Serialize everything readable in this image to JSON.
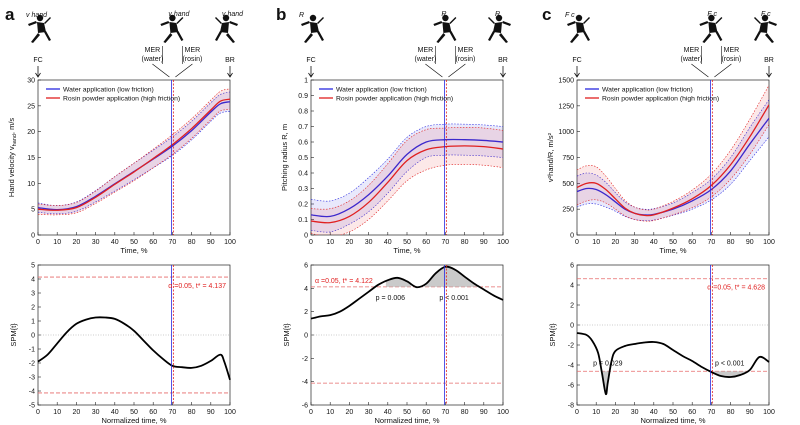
{
  "colors": {
    "water": "#2a2ae0",
    "rosin": "#e02020",
    "thr": "#e66a6a",
    "spm": "#000000",
    "supra": "#bdbdbd",
    "zero": "#9a9a9a",
    "velocity_icon": "#3aa4de"
  },
  "legend": {
    "water": "Water application (low friction)",
    "rosin": "Rosin powder application (high friction)"
  },
  "figure_events": {
    "fc": "FC",
    "mer_water": "MER\n(water)",
    "mer_rosin": "MER\n(rosin)",
    "br": "BR"
  },
  "mer_time": {
    "water": 69.5,
    "rosin": 70.5
  },
  "panels": [
    {
      "letter": "a",
      "icon_label": "v",
      "icon_sub": "hand",
      "top_chart": {
        "type": "line",
        "xlabel": "Time, %",
        "ylabel": "Hand velocity v",
        "ylabel_sub": "hand",
        "ylabel_unit": ", m/s",
        "xlim": [
          0,
          100
        ],
        "ylim": [
          0,
          30
        ],
        "xticks": [
          0,
          10,
          20,
          30,
          40,
          50,
          60,
          70,
          80,
          90,
          100
        ],
        "yticks": [
          0,
          5,
          10,
          15,
          20,
          25,
          30
        ],
        "x": [
          0,
          10,
          20,
          30,
          40,
          50,
          60,
          70,
          80,
          90,
          95,
          100
        ],
        "series": [
          {
            "name": "Water application (low friction)",
            "key": "water",
            "values": [
              5.3,
              4.9,
              5.5,
              7.5,
              9.9,
              12.3,
              14.7,
              17.2,
              20.2,
              23.8,
              25.4,
              25.8
            ],
            "sd": [
              0.9,
              0.8,
              0.9,
              1.1,
              1.4,
              1.6,
              1.7,
              1.8,
              1.8,
              1.8,
              1.8,
              1.9
            ]
          },
          {
            "name": "Rosin powder application (high friction)",
            "key": "rosin",
            "values": [
              5.0,
              4.8,
              5.3,
              7.3,
              9.8,
              12.2,
              14.8,
              17.5,
              20.6,
              24.2,
              25.9,
              26.3
            ],
            "sd": [
              1.0,
              0.9,
              1.0,
              1.2,
              1.5,
              1.7,
              1.8,
              1.9,
              1.9,
              1.9,
              1.9,
              2.0
            ]
          }
        ]
      },
      "spm_chart": {
        "type": "line",
        "xlabel": "Normalized time, %",
        "ylabel": "SPM{t}",
        "xlim": [
          0,
          100
        ],
        "ylim": [
          -5,
          5
        ],
        "xticks": [
          0,
          10,
          20,
          30,
          40,
          50,
          60,
          70,
          80,
          90,
          100
        ],
        "yticks": [
          -5,
          -4,
          -3,
          -2,
          -1,
          0,
          1,
          2,
          3,
          4,
          5
        ],
        "threshold": 4.137,
        "stat_label": "α =0.05,    t* = 4.137",
        "x": [
          0,
          5,
          10,
          15,
          20,
          25,
          30,
          35,
          40,
          45,
          50,
          55,
          60,
          65,
          70,
          75,
          80,
          85,
          90,
          95,
          97,
          100
        ],
        "values": [
          -1.9,
          -1.4,
          -0.6,
          0.2,
          0.8,
          1.1,
          1.25,
          1.25,
          1.15,
          0.8,
          0.3,
          -0.4,
          -1.1,
          -1.7,
          -2.2,
          -2.3,
          -2.35,
          -2.2,
          -1.85,
          -1.4,
          -1.9,
          -3.2
        ],
        "clusters": []
      }
    },
    {
      "letter": "b",
      "icon_label": "R",
      "icon_sub": "",
      "top_chart": {
        "type": "line",
        "xlabel": "Time, %",
        "ylabel": "Pitching radius R, m",
        "xlim": [
          0,
          100
        ],
        "ylim": [
          0,
          1
        ],
        "xticks": [
          0,
          10,
          20,
          30,
          40,
          50,
          60,
          70,
          80,
          90,
          100
        ],
        "yticks": [
          0,
          0.1,
          0.2,
          0.3,
          0.4,
          0.5,
          0.6,
          0.7,
          0.8,
          0.9,
          1
        ],
        "x": [
          0,
          10,
          20,
          30,
          40,
          50,
          60,
          70,
          80,
          90,
          100
        ],
        "series": [
          {
            "name": "Water application (low friction)",
            "key": "water",
            "values": [
              0.13,
              0.12,
              0.17,
              0.26,
              0.38,
              0.52,
              0.6,
              0.615,
              0.615,
              0.61,
              0.6
            ],
            "sd": [
              0.1,
              0.1,
              0.1,
              0.11,
              0.11,
              0.11,
              0.1,
              0.1,
              0.1,
              0.1,
              0.1
            ]
          },
          {
            "name": "Rosin powder application (high friction)",
            "key": "rosin",
            "values": [
              0.09,
              0.08,
              0.12,
              0.21,
              0.34,
              0.48,
              0.55,
              0.57,
              0.575,
              0.57,
              0.555
            ],
            "sd": [
              0.08,
              0.09,
              0.1,
              0.11,
              0.12,
              0.13,
              0.13,
              0.12,
              0.12,
              0.12,
              0.12
            ]
          }
        ]
      },
      "spm_chart": {
        "type": "line",
        "xlabel": "Normalized time, %",
        "ylabel": "SPM{t}",
        "xlim": [
          0,
          100
        ],
        "ylim": [
          -6,
          6
        ],
        "xticks": [
          0,
          10,
          20,
          30,
          40,
          50,
          60,
          70,
          80,
          90,
          100
        ],
        "yticks": [
          -6,
          -4,
          -2,
          0,
          2,
          4,
          6
        ],
        "threshold": 4.122,
        "stat_label": "α =0.05,    t* = 4.122",
        "x": [
          0,
          5,
          10,
          15,
          20,
          25,
          30,
          35,
          40,
          45,
          50,
          55,
          60,
          65,
          70,
          75,
          80,
          85,
          90,
          95,
          100
        ],
        "values": [
          1.4,
          1.6,
          1.7,
          2.0,
          2.5,
          3.1,
          3.7,
          4.3,
          4.7,
          4.9,
          4.6,
          4.1,
          4.4,
          5.3,
          5.85,
          5.6,
          5.0,
          4.4,
          3.9,
          3.4,
          3.0
        ],
        "clusters": [
          {
            "x0": 39,
            "x1": 52,
            "p": "p = 0.006",
            "where": "above"
          },
          {
            "x0": 59,
            "x1": 88,
            "p": "p < 0.001",
            "where": "above"
          }
        ]
      }
    },
    {
      "letter": "c",
      "icon_label": "F",
      "icon_sub": "c",
      "top_chart": {
        "type": "line",
        "xlabel": "Time, %",
        "ylabel": "v",
        "ylabel_note": "²hand/R, m/s²",
        "xlim": [
          0,
          100
        ],
        "ylim": [
          0,
          1500
        ],
        "xticks": [
          0,
          10,
          20,
          30,
          40,
          50,
          60,
          70,
          80,
          90,
          100
        ],
        "yticks": [
          0,
          250,
          500,
          750,
          1000,
          1250,
          1500
        ],
        "x": [
          0,
          5,
          10,
          15,
          20,
          25,
          30,
          35,
          40,
          50,
          60,
          70,
          80,
          90,
          100
        ],
        "series": [
          {
            "name": "Water application (low friction)",
            "key": "water",
            "values": [
              420,
              450,
              440,
              390,
              320,
              250,
              210,
              195,
              200,
              250,
              330,
              440,
              620,
              880,
              1130
            ],
            "sd": [
              150,
              150,
              140,
              120,
              90,
              70,
              60,
              55,
              55,
              60,
              80,
              100,
              130,
              160,
              180
            ]
          },
          {
            "name": "Rosin powder application (high friction)",
            "key": "rosin",
            "values": [
              460,
              500,
              500,
              440,
              350,
              260,
              210,
              190,
              195,
              260,
              350,
              480,
              680,
              950,
              1260
            ],
            "sd": [
              170,
              170,
              160,
              130,
              100,
              75,
              60,
              55,
              55,
              65,
              85,
              110,
              140,
              170,
              190
            ]
          }
        ]
      },
      "spm_chart": {
        "type": "line",
        "xlabel": "Normalized time, %",
        "ylabel": "SPM{t}",
        "xlim": [
          0,
          100
        ],
        "ylim": [
          -8,
          6
        ],
        "xticks": [
          0,
          10,
          20,
          30,
          40,
          50,
          60,
          70,
          80,
          90,
          100
        ],
        "yticks": [
          -8,
          -6,
          -4,
          -2,
          0,
          2,
          4,
          6
        ],
        "threshold": 4.628,
        "stat_label": "α =0.05,    t* = 4.628",
        "x": [
          0,
          5,
          8,
          11,
          13,
          15,
          16,
          18,
          20,
          25,
          30,
          35,
          40,
          45,
          50,
          55,
          60,
          65,
          70,
          75,
          80,
          85,
          90,
          95,
          100
        ],
        "values": [
          -0.8,
          -1.0,
          -1.6,
          -2.8,
          -4.8,
          -6.9,
          -5.8,
          -3.6,
          -2.6,
          -2.1,
          -1.9,
          -1.75,
          -1.7,
          -1.9,
          -2.5,
          -3.1,
          -3.6,
          -4.2,
          -4.7,
          -5.1,
          -5.2,
          -5.0,
          -4.5,
          -3.2,
          -3.7
        ],
        "clusters": [
          {
            "x0": 13,
            "x1": 17,
            "p": "p = 0.029",
            "where": "below"
          },
          {
            "x0": 68,
            "x1": 89,
            "p": "p < 0.001",
            "where": "below"
          }
        ]
      }
    }
  ]
}
